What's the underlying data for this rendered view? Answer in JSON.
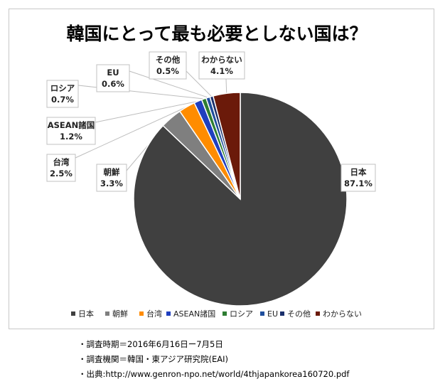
{
  "chart_data": {
    "type": "pie",
    "title": "韓国にとって最も必要としない国は？",
    "slices": [
      {
        "name": "日本",
        "value": 87.1,
        "label": "87.1%",
        "color": "#404040"
      },
      {
        "name": "朝鮮",
        "value": 3.3,
        "label": "3.3%",
        "color": "#7f7f7f"
      },
      {
        "name": "台湾",
        "value": 2.5,
        "label": "2.5%",
        "color": "#ff8c00"
      },
      {
        "name": "ASEAN諸国",
        "value": 1.2,
        "label": "1.2%",
        "color": "#1f3fbf"
      },
      {
        "name": "ロシア",
        "value": 0.7,
        "label": "0.7%",
        "color": "#2e7d32"
      },
      {
        "name": "EU",
        "value": 0.6,
        "label": "0.6%",
        "color": "#1f4e9c"
      },
      {
        "name": "その他",
        "value": 0.5,
        "label": "0.5%",
        "color": "#1a2f6b"
      },
      {
        "name": "わからない",
        "value": 4.1,
        "label": "4.1%",
        "color": "#6b1a0a"
      }
    ],
    "legend_position": "bottom"
  },
  "notes": [
    "・調査時期＝2016年6月16日ー7月5日",
    "・調査機関＝韓国・東アジア研究院(EAI)",
    "・出典:http://www.genron-npo.net/world/4thjapankorea160720.pdf"
  ]
}
